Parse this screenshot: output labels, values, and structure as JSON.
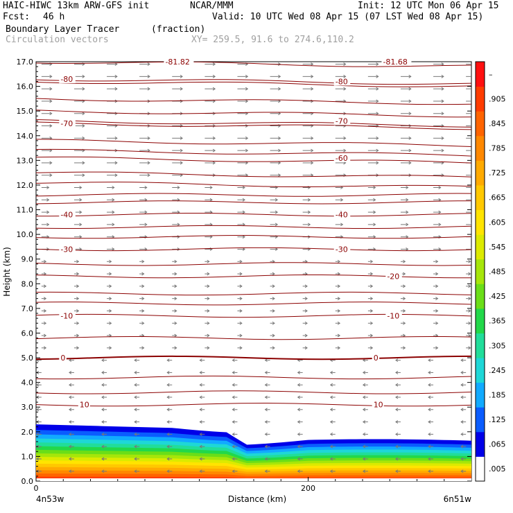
{
  "header": {
    "model": "HAIC-HIWC 13km ARW-GFS init",
    "org": "NCAR/MMM",
    "init": "Init: 12 UTC Mon 06 Apr 15",
    "fcst_label": "Fcst:",
    "fcst_value": "46 h",
    "valid": "Valid: 10 UTC Wed 08 Apr 15 (07 LST Wed 08 Apr 15)"
  },
  "fields": {
    "primary_name": "Boundary Layer Tracer",
    "primary_unit": "(fraction)",
    "secondary_name": "Circulation vectors",
    "cross_section": "XY= 259.5, 91.6 to 274.6,110.2"
  },
  "chart_data": {
    "type": "heatmap",
    "xlabel": "Distance (km)",
    "ylabel": "Height (km)",
    "xlim": [
      0,
      320
    ],
    "ylim": [
      0,
      17
    ],
    "x_ticks": [
      0,
      200
    ],
    "x_tick_labels": [
      "0",
      "200"
    ],
    "x_end_labels": [
      "4n53w",
      "6n51w"
    ],
    "y_ticks": [
      "0.0",
      "1.0",
      "2.0",
      "3.0",
      "4.0",
      "5.0",
      "6.0",
      "7.0",
      "8.0",
      "9.0",
      "10.0",
      "11.0",
      "12.0",
      "13.0",
      "14.0",
      "15.0",
      "16.0",
      "17.0"
    ],
    "colorbar": {
      "labels": [
        ".005",
        ".065",
        ".125",
        ".185",
        ".245",
        ".305",
        ".365",
        ".425",
        ".485",
        ".545",
        ".605",
        ".665",
        ".725",
        ".785",
        ".845",
        ".905",
        "–"
      ],
      "colors": [
        "#ffffff",
        "#0000e8",
        "#0a5cff",
        "#11aaff",
        "#1ed7d7",
        "#21dd9a",
        "#22d84a",
        "#6ade18",
        "#a6e60a",
        "#dcea00",
        "#ffe400",
        "#ffc800",
        "#ffaa00",
        "#ff8800",
        "#ff6400",
        "#ff3c00",
        "#ff1010"
      ]
    },
    "temperature_contours": [
      {
        "label": "-81.82",
        "height": 17.0,
        "label_x": 95
      },
      {
        "label": "-81.68",
        "height": 17.0,
        "label_x": 255
      },
      {
        "label": "-80",
        "height": 16.3,
        "label_x": 18
      },
      {
        "label": "-80",
        "height": 16.2,
        "label_x": 220
      },
      {
        "label": "-70",
        "height": 14.5,
        "label_x": 18
      },
      {
        "label": "-70",
        "height": 14.6,
        "label_x": 220
      },
      {
        "label": "-60",
        "height": 13.1,
        "label_x": 220
      },
      {
        "label": "-40",
        "height": 10.8,
        "label_x": 18
      },
      {
        "label": "-40",
        "height": 10.8,
        "label_x": 220
      },
      {
        "label": "-30",
        "height": 9.4,
        "label_x": 18
      },
      {
        "label": "-30",
        "height": 9.4,
        "label_x": 220
      },
      {
        "label": "-20",
        "height": 8.3,
        "label_x": 258
      },
      {
        "label": "-10",
        "height": 6.7,
        "label_x": 18
      },
      {
        "label": "-10",
        "height": 6.7,
        "label_x": 258
      },
      {
        "label": "0",
        "height": 5.0,
        "label_x": 18
      },
      {
        "label": "0",
        "height": 5.0,
        "label_x": 248
      },
      {
        "label": "10",
        "height": 3.1,
        "label_x": 32
      },
      {
        "label": "10",
        "height": 3.1,
        "label_x": 248
      }
    ],
    "extra_contour_heights": [
      15.5,
      15.0,
      13.8,
      13.4,
      12.5,
      12.1,
      11.6,
      11.3,
      10.3,
      9.9,
      8.8,
      7.6,
      7.2,
      5.8,
      4.2,
      3.6
    ],
    "tracer_top_height_left": 2.3,
    "tracer_top_height_right": 1.7
  }
}
